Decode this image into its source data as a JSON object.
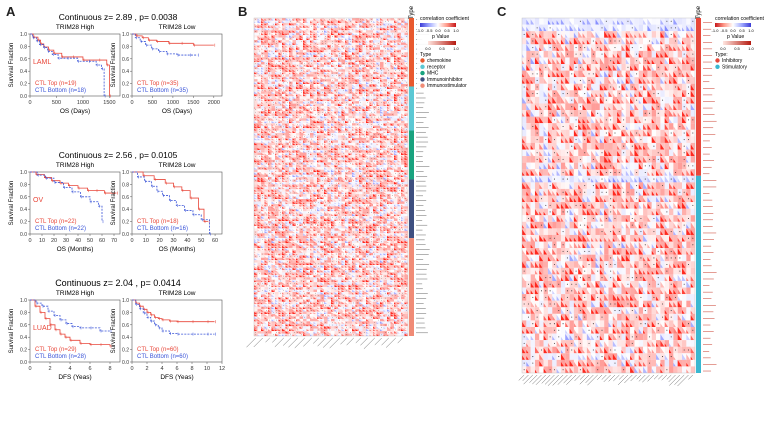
{
  "panels": {
    "a": "A",
    "b": "B",
    "c": "C"
  },
  "km_blocks": [
    {
      "header": "Continuous z= 2.89 , p= 0.0038",
      "cancer": "LAML",
      "ylabel": "Survival Fraction",
      "plots": [
        {
          "title": "TRIM28 High",
          "xlabel": "OS (Days)",
          "xticks": [
            "0",
            "500",
            "1000",
            "1500"
          ],
          "yticks": [
            "0.0",
            "0.2",
            "0.4",
            "0.6",
            "0.8",
            "1.0"
          ],
          "top_label": "CTL Top (n=19)",
          "bottom_label": "CTL Bottom (n=18)",
          "xmax": 1700,
          "top_curve": [
            [
              0,
              1.0
            ],
            [
              60,
              0.95
            ],
            [
              150,
              0.9
            ],
            [
              200,
              0.84
            ],
            [
              260,
              0.79
            ],
            [
              350,
              0.74
            ],
            [
              450,
              0.69
            ],
            [
              600,
              0.63
            ],
            [
              800,
              0.63
            ],
            [
              1000,
              0.58
            ],
            [
              1300,
              0.58
            ],
            [
              1450,
              0.5
            ],
            [
              1500,
              0.0
            ]
          ],
          "bottom_curve": [
            [
              0,
              1.0
            ],
            [
              50,
              0.94
            ],
            [
              120,
              0.89
            ],
            [
              180,
              0.83
            ],
            [
              260,
              0.78
            ],
            [
              330,
              0.72
            ],
            [
              420,
              0.67
            ],
            [
              530,
              0.61
            ],
            [
              700,
              0.61
            ],
            [
              900,
              0.56
            ],
            [
              1100,
              0.56
            ],
            [
              1250,
              0.5
            ],
            [
              1350,
              0.44
            ],
            [
              1400,
              0.0
            ]
          ]
        },
        {
          "title": "TRIM28 Low",
          "xlabel": "OS (Days)",
          "xticks": [
            "0",
            "500",
            "1000",
            "1500",
            "2000"
          ],
          "yticks": [
            "0.0",
            "0.2",
            "0.4",
            "0.6",
            "0.8",
            "1.0"
          ],
          "top_label": "CTL Top (n=35)",
          "bottom_label": "CTL Bottom (n=35)",
          "xmax": 2200,
          "top_curve": [
            [
              0,
              1.0
            ],
            [
              100,
              0.97
            ],
            [
              250,
              0.94
            ],
            [
              400,
              0.9
            ],
            [
              600,
              0.88
            ],
            [
              900,
              0.85
            ],
            [
              1200,
              0.85
            ],
            [
              1500,
              0.82
            ],
            [
              2000,
              0.82
            ]
          ],
          "bottom_curve": [
            [
              0,
              1.0
            ],
            [
              80,
              0.94
            ],
            [
              200,
              0.88
            ],
            [
              330,
              0.82
            ],
            [
              480,
              0.76
            ],
            [
              650,
              0.72
            ],
            [
              850,
              0.68
            ],
            [
              1100,
              0.66
            ],
            [
              1400,
              0.66
            ],
            [
              1600,
              0.66
            ]
          ]
        }
      ]
    },
    {
      "header": "Continuous z= 2.56 , p= 0.0105",
      "cancer": "OV",
      "ylabel": "Survival Fraction",
      "plots": [
        {
          "title": "TRIM28 High",
          "xlabel": "OS (Months)",
          "xticks": [
            "0",
            "10",
            "20",
            "30",
            "40",
            "50",
            "60",
            "70"
          ],
          "yticks": [
            "0.0",
            "0.2",
            "0.4",
            "0.6",
            "0.8",
            "1.0"
          ],
          "top_label": "CTL Top (n=22)",
          "bottom_label": "CTL Bottom (n=22)",
          "xmax": 75,
          "top_curve": [
            [
              0,
              1.0
            ],
            [
              5,
              0.96
            ],
            [
              12,
              0.91
            ],
            [
              18,
              0.86
            ],
            [
              25,
              0.82
            ],
            [
              32,
              0.78
            ],
            [
              40,
              0.74
            ],
            [
              48,
              0.7
            ],
            [
              55,
              0.7
            ],
            [
              62,
              0.66
            ],
            [
              72,
              0.66
            ]
          ],
          "bottom_curve": [
            [
              0,
              1.0
            ],
            [
              6,
              0.95
            ],
            [
              13,
              0.9
            ],
            [
              20,
              0.83
            ],
            [
              28,
              0.75
            ],
            [
              35,
              0.68
            ],
            [
              42,
              0.6
            ],
            [
              50,
              0.52
            ],
            [
              57,
              0.45
            ],
            [
              60,
              0.2
            ]
          ]
        },
        {
          "title": "TRIM28 Low",
          "xlabel": "OS (Months)",
          "xticks": [
            "0",
            "10",
            "20",
            "30",
            "40",
            "50",
            "60"
          ],
          "yticks": [
            "0.0",
            "0.2",
            "0.4",
            "0.6",
            "0.8",
            "1.0"
          ],
          "top_label": "CTL Top (n=18)",
          "bottom_label": "CTL Bottom (n=16)",
          "xmax": 65,
          "top_curve": [
            [
              0,
              1.0
            ],
            [
              8,
              0.94
            ],
            [
              16,
              0.88
            ],
            [
              24,
              0.82
            ],
            [
              30,
              0.76
            ],
            [
              36,
              0.7
            ],
            [
              42,
              0.58
            ],
            [
              48,
              0.4
            ],
            [
              52,
              0.2
            ],
            [
              55,
              0.2
            ]
          ],
          "bottom_curve": [
            [
              0,
              1.0
            ],
            [
              4,
              0.92
            ],
            [
              9,
              0.85
            ],
            [
              14,
              0.77
            ],
            [
              18,
              0.69
            ],
            [
              22,
              0.62
            ],
            [
              27,
              0.54
            ],
            [
              32,
              0.46
            ],
            [
              38,
              0.38
            ],
            [
              44,
              0.31
            ],
            [
              50,
              0.23
            ],
            [
              56,
              0.0
            ]
          ]
        }
      ]
    },
    {
      "header": "Continuous z= 2.04 , p= 0.0414",
      "cancer": "LUAD",
      "ylabel": "Survival Fraction",
      "plots": [
        {
          "title": "TRIM28 High",
          "xlabel": "DFS (Yeas)",
          "xticks": [
            "0",
            "2",
            "4",
            "6",
            "8"
          ],
          "yticks": [
            "0.0",
            "0.2",
            "0.4",
            "0.6",
            "0.8",
            "1.0"
          ],
          "top_label": "CTL Top (n=29)",
          "bottom_label": "CTL Bottom (n=28)",
          "xmax": 9,
          "top_curve": [
            [
              0,
              1.0
            ],
            [
              0.5,
              0.9
            ],
            [
              1,
              0.8
            ],
            [
              1.5,
              0.7
            ],
            [
              2,
              0.6
            ],
            [
              2.5,
              0.52
            ],
            [
              3,
              0.45
            ],
            [
              3.5,
              0.4
            ],
            [
              4,
              0.35
            ],
            [
              5,
              0.3
            ],
            [
              6,
              0.28
            ],
            [
              7,
              0.28
            ],
            [
              8,
              0.25
            ]
          ],
          "bottom_curve": [
            [
              0,
              1.0
            ],
            [
              0.6,
              0.95
            ],
            [
              1.2,
              0.9
            ],
            [
              1.8,
              0.82
            ],
            [
              2.4,
              0.75
            ],
            [
              3,
              0.68
            ],
            [
              3.6,
              0.62
            ],
            [
              4.2,
              0.57
            ],
            [
              5,
              0.55
            ],
            [
              6,
              0.55
            ],
            [
              7,
              0.5
            ],
            [
              8,
              0.5
            ]
          ]
        },
        {
          "title": "TRIM28 Low",
          "xlabel": "DFS (Yeas)",
          "xticks": [
            "0",
            "2",
            "4",
            "6",
            "8",
            "10",
            "12"
          ],
          "yticks": [
            "0.0",
            "0.2",
            "0.4",
            "0.6",
            "0.8",
            "1.0"
          ],
          "top_label": "CTL Top (n=60)",
          "bottom_label": "CTL Bottom (n=60)",
          "xmax": 12,
          "top_curve": [
            [
              0,
              1.0
            ],
            [
              0.5,
              0.95
            ],
            [
              1,
              0.9
            ],
            [
              1.5,
              0.85
            ],
            [
              2,
              0.8
            ],
            [
              2.5,
              0.76
            ],
            [
              3,
              0.72
            ],
            [
              3.5,
              0.7
            ],
            [
              4,
              0.68
            ],
            [
              5,
              0.66
            ],
            [
              6,
              0.65
            ],
            [
              8,
              0.65
            ],
            [
              10,
              0.65
            ],
            [
              11,
              0.65
            ]
          ],
          "bottom_curve": [
            [
              0,
              1.0
            ],
            [
              0.5,
              0.93
            ],
            [
              1,
              0.86
            ],
            [
              1.5,
              0.79
            ],
            [
              2,
              0.72
            ],
            [
              2.5,
              0.66
            ],
            [
              3,
              0.6
            ],
            [
              3.5,
              0.55
            ],
            [
              4,
              0.5
            ],
            [
              5,
              0.46
            ],
            [
              6,
              0.45
            ],
            [
              8,
              0.45
            ],
            [
              10,
              0.45
            ],
            [
              11,
              0.45
            ]
          ]
        }
      ]
    }
  ],
  "heatmap_b": {
    "type_header": "Type",
    "legend_cc_title": "correlation coefficient",
    "legend_cc_ticks": [
      "-1.0",
      "-0.5",
      "0.0",
      "0.5",
      "1.0"
    ],
    "legend_p_title": "p Value",
    "legend_p_ticks": [
      "0.0",
      "0.5",
      "1.0"
    ],
    "legend_type_title": "Type",
    "types": [
      {
        "label": "chemokine",
        "color": "#e8592e"
      },
      {
        "label": "receptor",
        "color": "#5bc8d4"
      },
      {
        "label": "MHC",
        "color": "#1aa37f"
      },
      {
        "label": "Immunoinhibitor",
        "color": "#3e4f80"
      },
      {
        "label": "Immunostimulator",
        "color": "#f08b76"
      }
    ]
  },
  "heatmap_c": {
    "type_header": "Type",
    "legend_cc_title": "correlation coefficient",
    "legend_cc_ticks": [
      "-1.0",
      "-0.5",
      "0.0",
      "0.5",
      "1.0"
    ],
    "legend_p_title": "p Value",
    "legend_p_ticks": [
      "0.0",
      "0.5",
      "1.0"
    ],
    "legend_type_title": "Type:",
    "types": [
      {
        "label": "Inhibitory",
        "color": "#e8473a"
      },
      {
        "label": "Stimulatory",
        "color": "#3ab7d0"
      }
    ]
  }
}
